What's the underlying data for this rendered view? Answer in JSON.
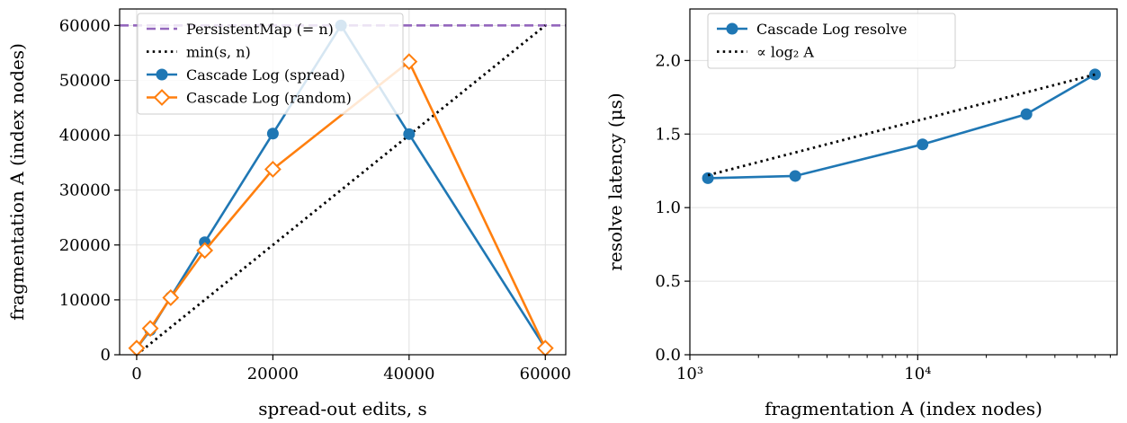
{
  "chart_data": [
    {
      "type": "line",
      "xlabel": "spread-out edits, s",
      "ylabel": "fragmentation A (index nodes)",
      "xlim": [
        -2500,
        63000
      ],
      "ylim": [
        0,
        63000
      ],
      "xticks": [
        0,
        20000,
        40000,
        60000
      ],
      "yticks": [
        0,
        10000,
        20000,
        30000,
        40000,
        50000,
        60000
      ],
      "grid": true,
      "legend_position": "top-left",
      "series": [
        {
          "name": "PersistentMap (= n)",
          "style": "dashed",
          "color": "#9467bd",
          "x": [
            -2500,
            63000
          ],
          "y": [
            60000,
            60000
          ]
        },
        {
          "name": "min(s, n)",
          "style": "dotted",
          "color": "#000000",
          "x": [
            0,
            60000
          ],
          "y": [
            0,
            60000
          ]
        },
        {
          "name": "Cascade Log (spread)",
          "style": "solid",
          "marker": "circle",
          "color": "#1f77b4",
          "x": [
            0,
            2000,
            5000,
            10000,
            20000,
            30000,
            40000,
            60000
          ],
          "y": [
            1200,
            4500,
            10500,
            20500,
            40300,
            60000,
            40200,
            1200
          ]
        },
        {
          "name": "Cascade Log (random)",
          "style": "solid",
          "marker": "diamond-open",
          "color": "#ff7f0e",
          "x": [
            0,
            2000,
            5000,
            10000,
            20000,
            40000,
            60000
          ],
          "y": [
            1200,
            4800,
            10400,
            19000,
            33800,
            53400,
            1200
          ]
        }
      ]
    },
    {
      "type": "line",
      "xlabel": "fragmentation A (index nodes)",
      "ylabel": "resolve latency (μs)",
      "xscale": "log",
      "xlim": [
        1000,
        75000
      ],
      "ylim": [
        0,
        2.35
      ],
      "xticks": [
        1000,
        10000
      ],
      "xtick_labels": [
        "10³",
        "10⁴"
      ],
      "yticks": [
        0,
        0.5,
        1.0,
        1.5,
        2.0
      ],
      "ytick_labels": [
        "0.0",
        "0.5",
        "1.0",
        "1.5",
        "2.0"
      ],
      "grid": true,
      "legend_position": "top-left",
      "series": [
        {
          "name": "Cascade Log resolve",
          "style": "solid",
          "marker": "circle",
          "color": "#1f77b4",
          "x": [
            1200,
            2900,
            10500,
            30000,
            60000
          ],
          "y": [
            1.2,
            1.215,
            1.43,
            1.635,
            1.905
          ]
        },
        {
          "name": "∝ log₂ A",
          "style": "dotted",
          "color": "#000000",
          "x": [
            1200,
            60000
          ],
          "y": [
            1.22,
            1.905
          ]
        }
      ]
    }
  ]
}
